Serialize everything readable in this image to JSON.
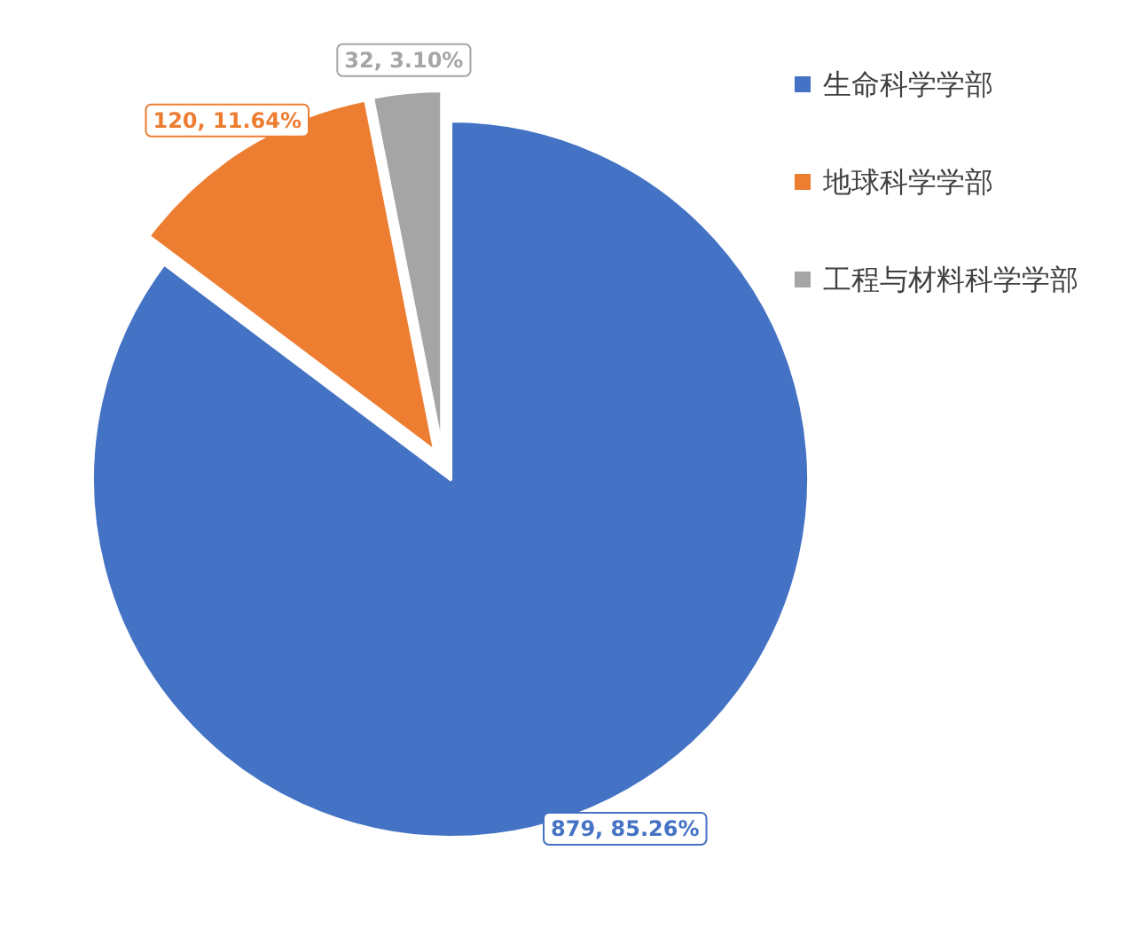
{
  "chart_data": {
    "type": "pie",
    "categories": [
      "生命科学学部",
      "地球科学学部",
      "工程与材料科学学部"
    ],
    "values": [
      879,
      120,
      32
    ],
    "colors": [
      "#4472c4",
      "#ed7d31",
      "#a5a5a5"
    ],
    "value_labels": [
      "879, 85.26%",
      "120, 11.64%",
      "32, 3.10%"
    ],
    "legend": "top right"
  }
}
